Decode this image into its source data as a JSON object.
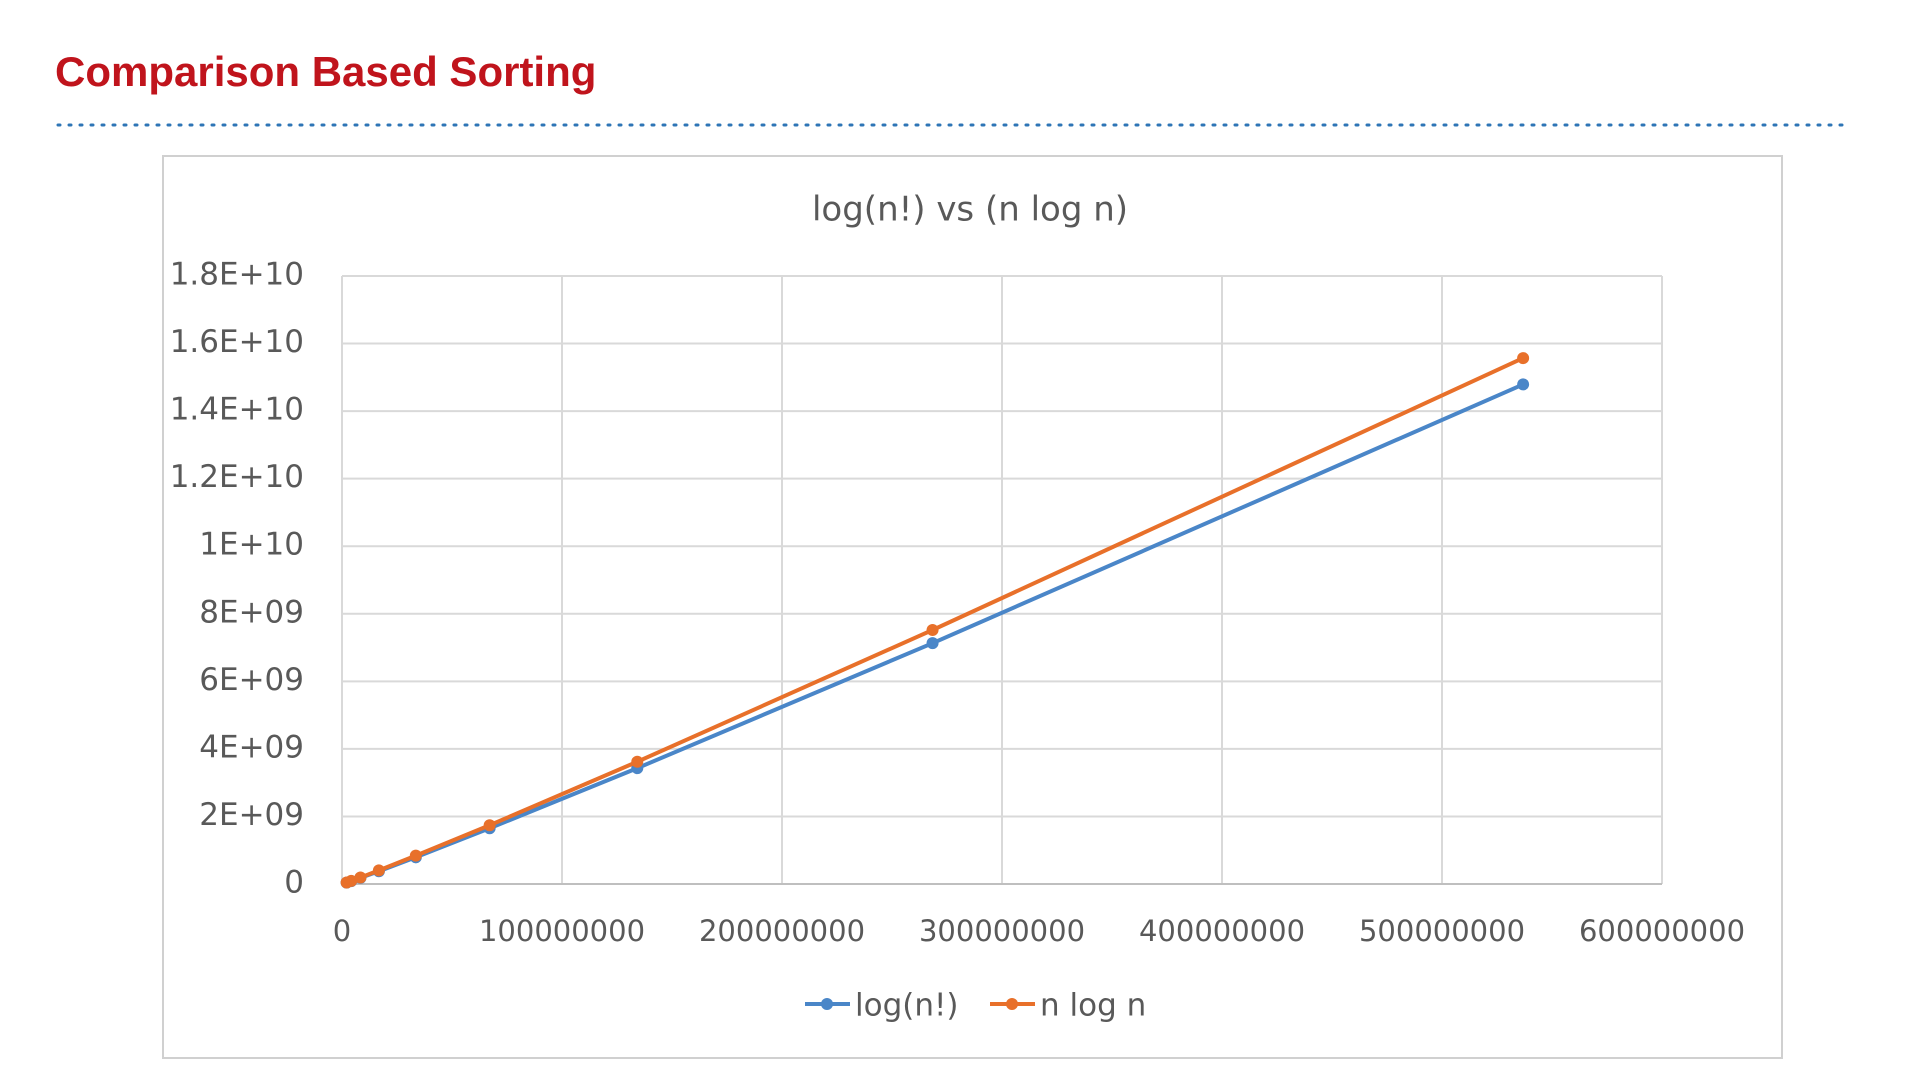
{
  "slide_title": "Comparison Based Sorting",
  "chart_data": {
    "type": "line",
    "title": "log(n!) vs (n log n)",
    "x": [
      2097152,
      4194304,
      8388608,
      16777216,
      33554432,
      67108864,
      134217728,
      268435456,
      536870912
    ],
    "series": [
      {
        "name": "log(n!)",
        "color": "#4a86c8",
        "values": [
          41000000,
          86200000,
          181000000,
          378000000,
          790000000,
          1650000000,
          3430000000,
          7130000000,
          14790000000
        ]
      },
      {
        "name": "n log n",
        "color": "#e8702a",
        "values": [
          44000000,
          92300000,
          193000000,
          403000000,
          839000000,
          1740000000,
          3620000000,
          7520000000,
          15570000000
        ]
      }
    ],
    "xlim": [
      0,
      600000000
    ],
    "xticks": [
      0,
      100000000,
      200000000,
      300000000,
      400000000,
      500000000,
      600000000
    ],
    "ylim": [
      0,
      18000000000
    ],
    "yticks": [
      0,
      {
        "value": 2000000000,
        "label": "2E+09"
      },
      {
        "value": 4000000000,
        "label": "4E+09"
      },
      {
        "value": 6000000000,
        "label": "6E+09"
      },
      {
        "value": 8000000000,
        "label": "8E+09"
      },
      {
        "value": 10000000000,
        "label": "1E+10"
      },
      {
        "value": 12000000000,
        "label": "1.2E+10"
      },
      {
        "value": 14000000000,
        "label": "1.4E+10"
      },
      {
        "value": 16000000000,
        "label": "1.6E+10"
      },
      {
        "value": 18000000000,
        "label": "1.8E+10"
      }
    ],
    "grid": true,
    "legend": "bottom"
  }
}
